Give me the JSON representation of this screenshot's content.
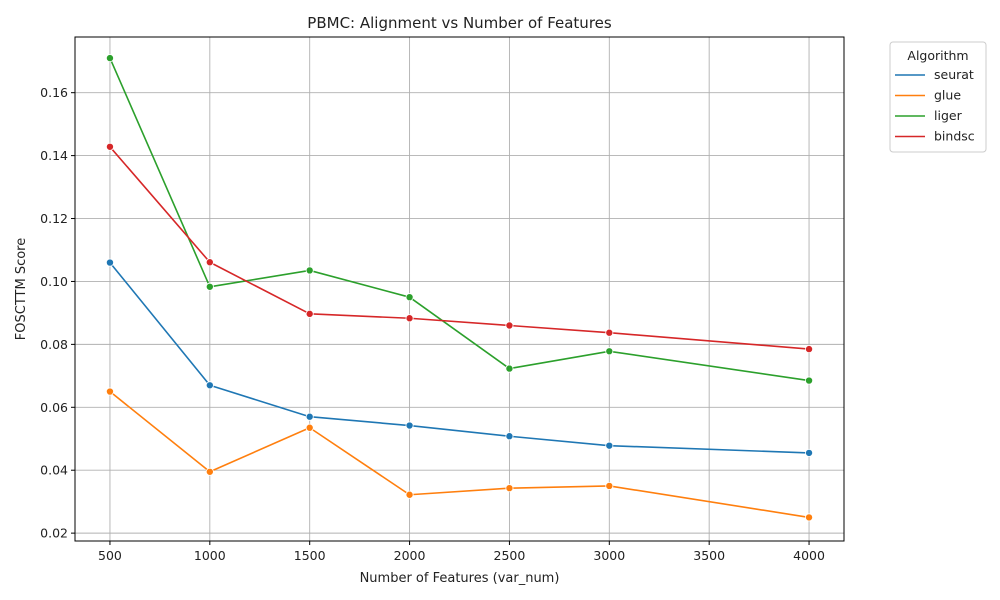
{
  "chart_data": {
    "type": "line",
    "title": "PBMC: Alignment vs Number of Features",
    "xlabel": "Number of Features (var_num)",
    "ylabel": "FOSCTTM Score",
    "x": [
      500,
      1000,
      1500,
      2000,
      2500,
      3000,
      4000
    ],
    "xticks": [
      500,
      1000,
      1500,
      2000,
      2500,
      3000,
      3500,
      4000
    ],
    "yticks": [
      0.02,
      0.04,
      0.06,
      0.08,
      0.1,
      0.12,
      0.14,
      0.16
    ],
    "ytick_labels": [
      "0.02",
      "0.04",
      "0.06",
      "0.08",
      "0.10",
      "0.12",
      "0.14",
      "0.16"
    ],
    "xlim": [
      325,
      4175
    ],
    "ylim": [
      0.0175,
      0.1777
    ],
    "grid": true,
    "legend": {
      "title": "Algorithm",
      "placement": "outside-top-right"
    },
    "series": [
      {
        "name": "seurat",
        "color": "#1f77b4",
        "values": [
          0.106,
          0.067,
          0.057,
          0.0542,
          0.0508,
          0.0478,
          0.0455
        ]
      },
      {
        "name": "glue",
        "color": "#ff7f0e",
        "values": [
          0.065,
          0.0395,
          0.0535,
          0.0322,
          0.0343,
          0.035,
          0.025
        ]
      },
      {
        "name": "liger",
        "color": "#2ca02c",
        "values": [
          0.171,
          0.0983,
          0.1035,
          0.095,
          0.0723,
          0.0778,
          0.0685
        ]
      },
      {
        "name": "bindsc",
        "color": "#d62728",
        "values": [
          0.1428,
          0.1061,
          0.0897,
          0.0883,
          0.086,
          0.0837,
          0.0785
        ]
      }
    ]
  }
}
